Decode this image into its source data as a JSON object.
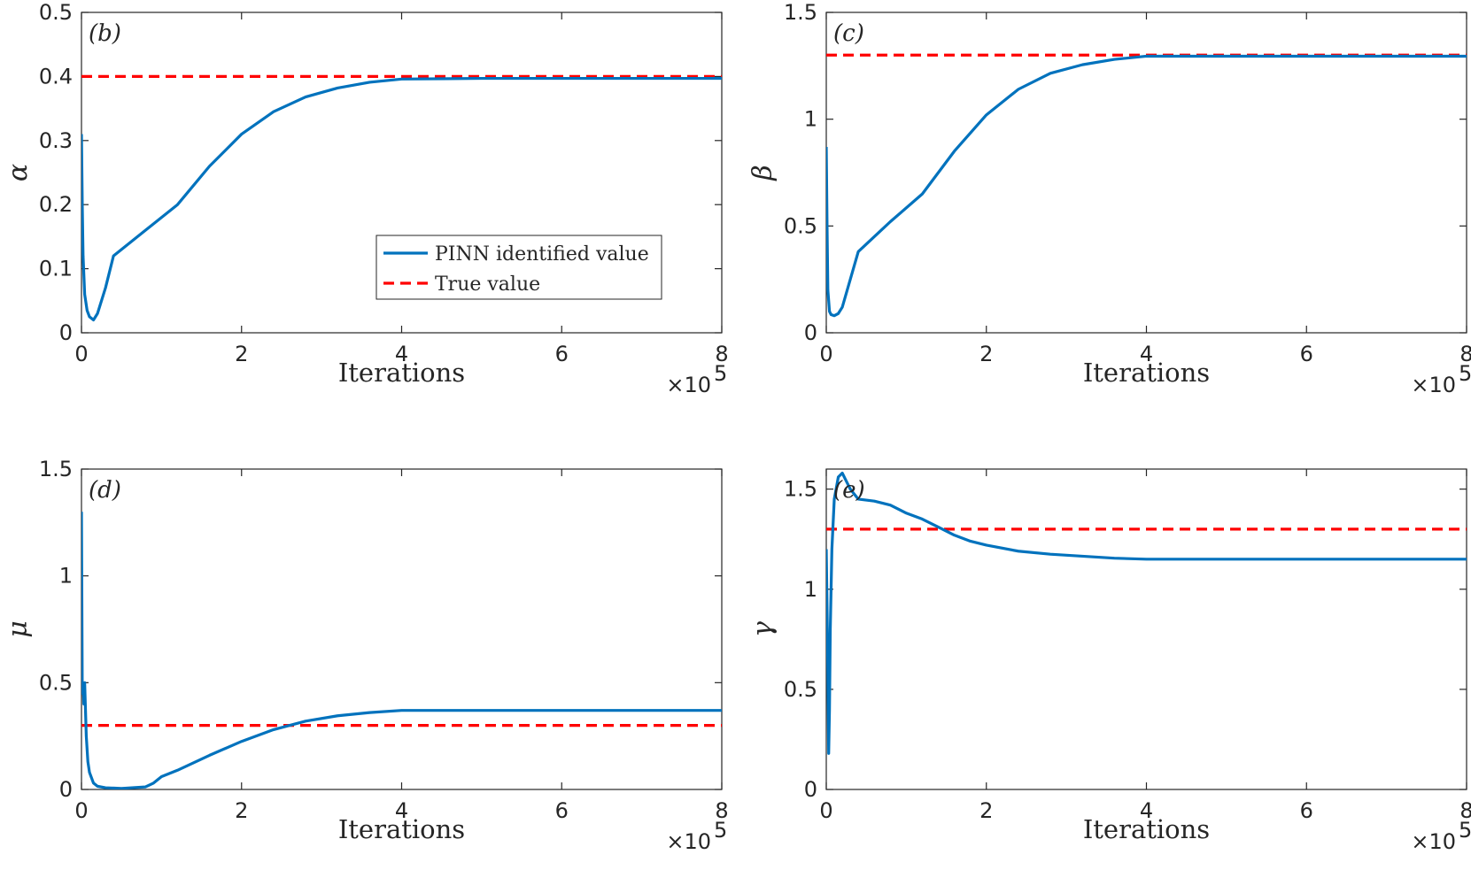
{
  "chart_data": [
    {
      "type": "line",
      "panel_label": "(b)",
      "xlabel": "Iterations",
      "x_multiplier": "×10",
      "x_exponent": "5",
      "ylabel": "α",
      "xlim": [
        0,
        8
      ],
      "ylim": [
        0,
        0.5
      ],
      "xticks": [
        "0",
        "2",
        "4",
        "6",
        "8"
      ],
      "yticks": [
        "0",
        "0.1",
        "0.2",
        "0.3",
        "0.4",
        "0.5"
      ],
      "legend": {
        "entries": [
          "PINN identified value",
          "True value"
        ],
        "location": "lower-right"
      },
      "series": [
        {
          "name": "PINN identified value",
          "color": "#0072BD",
          "style": "solid",
          "x": [
            0,
            0.01,
            0.02,
            0.04,
            0.07,
            0.1,
            0.15,
            0.2,
            0.3,
            0.4,
            0.8,
            1.2,
            1.6,
            2.0,
            2.4,
            2.8,
            3.2,
            3.6,
            4.0,
            5.0,
            6.0,
            7.0,
            8.0
          ],
          "y": [
            0.31,
            0.2,
            0.12,
            0.06,
            0.035,
            0.025,
            0.02,
            0.03,
            0.07,
            0.12,
            0.16,
            0.2,
            0.26,
            0.31,
            0.345,
            0.368,
            0.382,
            0.391,
            0.396,
            0.397,
            0.397,
            0.397,
            0.397
          ]
        },
        {
          "name": "True value",
          "color": "#FF0000",
          "style": "dashed",
          "x": [
            0,
            8
          ],
          "y": [
            0.4,
            0.4
          ]
        }
      ]
    },
    {
      "type": "line",
      "panel_label": "(c)",
      "xlabel": "Iterations",
      "x_multiplier": "×10",
      "x_exponent": "5",
      "ylabel": "β",
      "xlim": [
        0,
        8
      ],
      "ylim": [
        0,
        1.5
      ],
      "xticks": [
        "0",
        "2",
        "4",
        "6",
        "8"
      ],
      "yticks": [
        "0",
        "0.5",
        "1",
        "1.5"
      ],
      "series": [
        {
          "name": "PINN identified value",
          "color": "#0072BD",
          "style": "solid",
          "x": [
            0,
            0.01,
            0.02,
            0.04,
            0.06,
            0.1,
            0.15,
            0.2,
            0.3,
            0.4,
            0.8,
            1.2,
            1.6,
            2.0,
            2.4,
            2.8,
            3.2,
            3.6,
            4.0,
            5.0,
            6.0,
            7.0,
            8.0
          ],
          "y": [
            0.87,
            0.5,
            0.2,
            0.1,
            0.085,
            0.08,
            0.09,
            0.12,
            0.25,
            0.38,
            0.52,
            0.65,
            0.85,
            1.02,
            1.14,
            1.215,
            1.255,
            1.28,
            1.295,
            1.295,
            1.295,
            1.295,
            1.295
          ]
        },
        {
          "name": "True value",
          "color": "#FF0000",
          "style": "dashed",
          "x": [
            0,
            8
          ],
          "y": [
            1.3,
            1.3
          ]
        }
      ]
    },
    {
      "type": "line",
      "panel_label": "(d)",
      "xlabel": "Iterations",
      "x_multiplier": "×10",
      "x_exponent": "5",
      "ylabel": "μ",
      "xlim": [
        0,
        8
      ],
      "ylim": [
        0,
        1.5
      ],
      "xticks": [
        "0",
        "2",
        "4",
        "6",
        "8"
      ],
      "yticks": [
        "0",
        "0.5",
        "1",
        "1.5"
      ],
      "series": [
        {
          "name": "PINN identified value",
          "color": "#0072BD",
          "style": "solid",
          "x": [
            0,
            0.01,
            0.02,
            0.03,
            0.04,
            0.06,
            0.08,
            0.1,
            0.15,
            0.2,
            0.3,
            0.5,
            0.8,
            0.9,
            1.0,
            1.2,
            1.6,
            2.0,
            2.4,
            2.8,
            3.2,
            3.6,
            4.0,
            5.0,
            6.0,
            7.0,
            8.0
          ],
          "y": [
            1.3,
            0.45,
            0.5,
            0.4,
            0.5,
            0.25,
            0.13,
            0.08,
            0.03,
            0.015,
            0.008,
            0.005,
            0.012,
            0.03,
            0.06,
            0.09,
            0.16,
            0.225,
            0.28,
            0.32,
            0.345,
            0.36,
            0.37,
            0.37,
            0.37,
            0.37,
            0.37
          ]
        },
        {
          "name": "True value",
          "color": "#FF0000",
          "style": "dashed",
          "x": [
            0,
            8
          ],
          "y": [
            0.3,
            0.3
          ]
        }
      ]
    },
    {
      "type": "line",
      "panel_label": "(e)",
      "xlabel": "Iterations",
      "x_multiplier": "×10",
      "x_exponent": "5",
      "ylabel": "γ",
      "xlim": [
        0,
        8
      ],
      "ylim": [
        0,
        1.6
      ],
      "xticks": [
        "0",
        "2",
        "4",
        "6",
        "8"
      ],
      "yticks": [
        "0",
        "0.5",
        "1",
        "1.5"
      ],
      "series": [
        {
          "name": "PINN identified value",
          "color": "#0072BD",
          "style": "solid",
          "x": [
            0,
            0.01,
            0.02,
            0.03,
            0.04,
            0.05,
            0.07,
            0.1,
            0.15,
            0.2,
            0.25,
            0.3,
            0.4,
            0.6,
            0.8,
            1.0,
            1.2,
            1.4,
            1.6,
            1.8,
            2.0,
            2.4,
            2.8,
            3.2,
            3.6,
            4.0,
            5.0,
            6.0,
            7.0,
            8.0
          ],
          "y": [
            1.2,
            0.9,
            0.6,
            0.18,
            0.4,
            0.8,
            1.2,
            1.45,
            1.56,
            1.58,
            1.54,
            1.5,
            1.45,
            1.44,
            1.42,
            1.38,
            1.35,
            1.31,
            1.27,
            1.24,
            1.22,
            1.19,
            1.175,
            1.165,
            1.155,
            1.15,
            1.15,
            1.15,
            1.15,
            1.15
          ]
        },
        {
          "name": "True value",
          "color": "#FF0000",
          "style": "dashed",
          "x": [
            0,
            8
          ],
          "y": [
            1.3,
            1.3
          ]
        }
      ]
    }
  ]
}
